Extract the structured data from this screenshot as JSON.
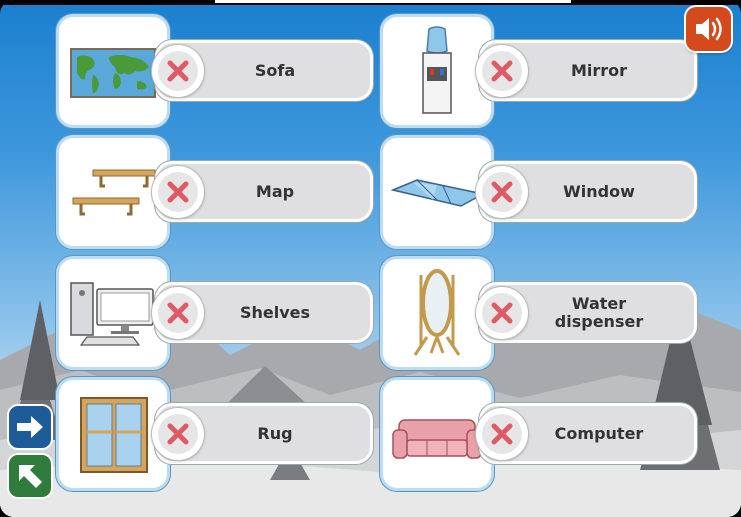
{
  "options": [
    {
      "id": "sofa",
      "label": "Sofa",
      "picture": "world-map-icon"
    },
    {
      "id": "map",
      "label": "Map",
      "picture": "shelves-icon"
    },
    {
      "id": "shelves",
      "label": "Shelves",
      "picture": "computer-icon"
    },
    {
      "id": "rug",
      "label": "Rug",
      "picture": "window-icon"
    },
    {
      "id": "mirror",
      "label": "Mirror",
      "picture": "water-dispenser-icon"
    },
    {
      "id": "window",
      "label": "Window",
      "picture": "rug-icon"
    },
    {
      "id": "water_dispenser",
      "label": "Water\ndispenser",
      "picture": "mirror-icon"
    },
    {
      "id": "computer",
      "label": "Computer",
      "picture": "sofa-icon"
    }
  ],
  "controls": {
    "sound": "speaker-icon",
    "next": "arrow-right-icon",
    "exit": "arrow-exit-icon"
  },
  "colors": {
    "sky_top": "#1a7fcf",
    "sound_button": "#d44a1c",
    "next_button": "#1d5c99",
    "exit_button": "#2f7c3c",
    "cross": "#e05a66"
  }
}
